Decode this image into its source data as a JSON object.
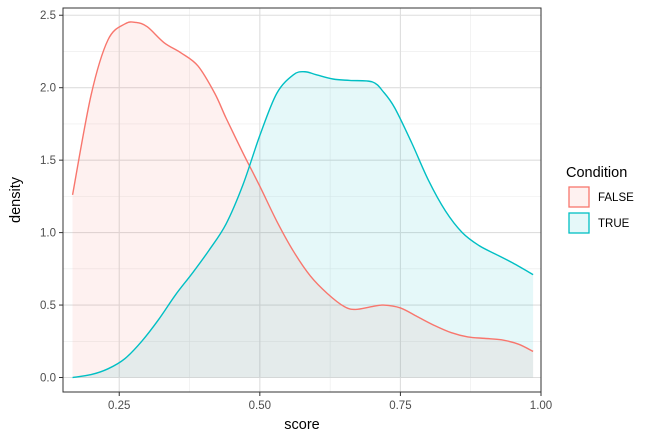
{
  "chart_data": {
    "type": "area",
    "xlabel": "score",
    "ylabel": "density",
    "xlim": [
      0.15,
      1.0
    ],
    "ylim": [
      -0.1,
      2.55
    ],
    "x_ticks": [
      {
        "value": 0.25,
        "label": "0.25"
      },
      {
        "value": 0.5,
        "label": "0.50"
      },
      {
        "value": 0.75,
        "label": "0.75"
      },
      {
        "value": 1.0,
        "label": "1.00"
      }
    ],
    "y_ticks": [
      {
        "value": 0.0,
        "label": "0.0"
      },
      {
        "value": 0.5,
        "label": "0.5"
      },
      {
        "value": 1.0,
        "label": "1.0"
      },
      {
        "value": 1.5,
        "label": "1.5"
      },
      {
        "value": 2.0,
        "label": "2.0"
      },
      {
        "value": 2.5,
        "label": "2.5"
      }
    ],
    "grid": true,
    "legend": {
      "title": "Condition",
      "placement": "right",
      "entries": [
        "FALSE",
        "TRUE"
      ]
    },
    "series": [
      {
        "name": "FALSE",
        "color": "#F8766D",
        "fill": "#F8766D",
        "x": [
          0.167,
          0.2,
          0.23,
          0.26,
          0.28,
          0.3,
          0.33,
          0.36,
          0.39,
          0.42,
          0.44,
          0.47,
          0.5,
          0.53,
          0.56,
          0.59,
          0.62,
          0.65,
          0.67,
          0.7,
          0.72,
          0.75,
          0.78,
          0.81,
          0.84,
          0.87,
          0.9,
          0.93,
          0.96,
          0.986
        ],
        "y": [
          1.26,
          1.95,
          2.33,
          2.44,
          2.45,
          2.42,
          2.31,
          2.24,
          2.15,
          1.96,
          1.79,
          1.55,
          1.32,
          1.08,
          0.87,
          0.7,
          0.58,
          0.49,
          0.47,
          0.49,
          0.5,
          0.48,
          0.42,
          0.36,
          0.31,
          0.28,
          0.27,
          0.26,
          0.23,
          0.18
        ]
      },
      {
        "name": "TRUE",
        "color": "#00BFC4",
        "fill": "#00BFC4",
        "x": [
          0.167,
          0.2,
          0.23,
          0.26,
          0.29,
          0.32,
          0.35,
          0.38,
          0.41,
          0.44,
          0.47,
          0.5,
          0.53,
          0.56,
          0.58,
          0.6,
          0.63,
          0.66,
          0.7,
          0.72,
          0.74,
          0.77,
          0.8,
          0.83,
          0.86,
          0.89,
          0.92,
          0.95,
          0.986
        ],
        "y": [
          0.0,
          0.02,
          0.06,
          0.13,
          0.25,
          0.4,
          0.57,
          0.72,
          0.88,
          1.06,
          1.33,
          1.67,
          1.96,
          2.09,
          2.11,
          2.09,
          2.06,
          2.05,
          2.04,
          1.97,
          1.86,
          1.62,
          1.36,
          1.15,
          1.0,
          0.91,
          0.85,
          0.79,
          0.71
        ]
      }
    ]
  }
}
